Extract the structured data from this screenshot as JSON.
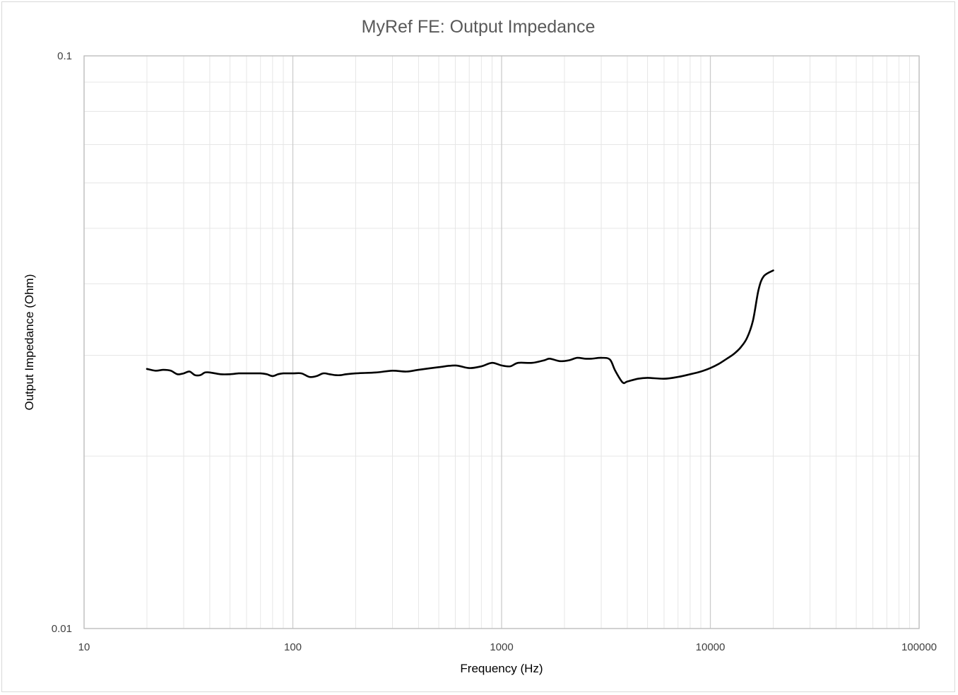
{
  "chart_data": {
    "type": "line",
    "title": "MyRef FE: Output Impedance",
    "xlabel": "Frequency (Hz)",
    "ylabel": "Output Impedance (Ohm)",
    "x_scale": "log",
    "y_scale": "log",
    "xlim": [
      10,
      100000
    ],
    "ylim": [
      0.01,
      0.1
    ],
    "x_ticks": [
      10,
      100,
      1000,
      10000,
      100000
    ],
    "x_tick_labels": [
      "10",
      "100",
      "1000",
      "10000",
      "100000"
    ],
    "y_ticks": [
      0.01,
      0.1
    ],
    "y_tick_labels": [
      "0.01",
      "0.1"
    ],
    "grid": true,
    "legend": "none",
    "line_color": "#000000",
    "series": [
      {
        "x": [
          20,
          22,
          24,
          26,
          28,
          30,
          32,
          34,
          36,
          38,
          40,
          45,
          50,
          55,
          60,
          70,
          75,
          80,
          85,
          90,
          100,
          110,
          120,
          130,
          140,
          150,
          160,
          170,
          180,
          200,
          250,
          300,
          350,
          400,
          500,
          600,
          700,
          800,
          900,
          1000,
          1100,
          1200,
          1400,
          1600,
          1700,
          1900,
          2100,
          2300,
          2500,
          2700,
          3000,
          3300,
          3500,
          3800,
          4000,
          4500,
          5000,
          6000,
          7000,
          8000,
          9000,
          10000,
          11000,
          12000,
          13000,
          14000,
          15000,
          16000,
          17000,
          18000,
          20000
        ],
        "y": [
          0.0284,
          0.0282,
          0.0283,
          0.0282,
          0.0278,
          0.0279,
          0.0281,
          0.0277,
          0.0277,
          0.028,
          0.028,
          0.0278,
          0.0278,
          0.0279,
          0.0279,
          0.0279,
          0.0278,
          0.0276,
          0.0278,
          0.0279,
          0.0279,
          0.0279,
          0.0275,
          0.0276,
          0.0279,
          0.0278,
          0.0277,
          0.0277,
          0.0278,
          0.0279,
          0.028,
          0.0282,
          0.0281,
          0.0283,
          0.0286,
          0.0288,
          0.0285,
          0.0287,
          0.0291,
          0.0288,
          0.0287,
          0.0291,
          0.0291,
          0.0294,
          0.0296,
          0.0293,
          0.0294,
          0.0297,
          0.0296,
          0.0296,
          0.0297,
          0.0295,
          0.0282,
          0.0269,
          0.027,
          0.0273,
          0.0274,
          0.0273,
          0.0275,
          0.0278,
          0.0281,
          0.0285,
          0.029,
          0.0296,
          0.0302,
          0.031,
          0.0322,
          0.0345,
          0.039,
          0.0412,
          0.0422
        ]
      }
    ]
  }
}
